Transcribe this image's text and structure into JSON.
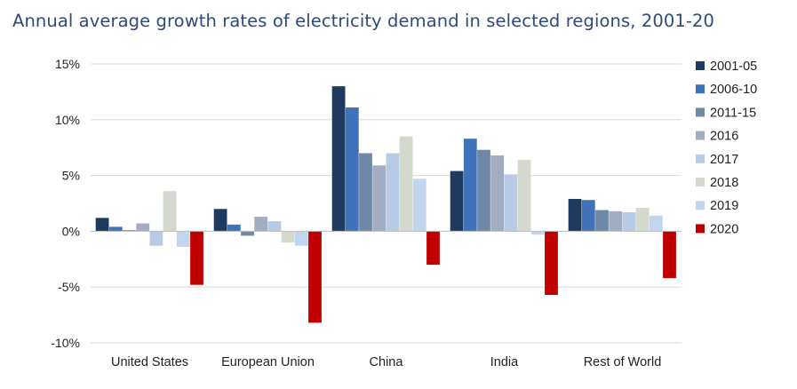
{
  "chart_data": {
    "type": "bar",
    "title": "Annual average growth rates of electricity demand in selected regions, 2001-20",
    "xlabel": "",
    "ylabel": "",
    "ylim": [
      -10,
      15
    ],
    "yticks": [
      "15%",
      "10%",
      "5%",
      "0%",
      "-5%",
      "-10%"
    ],
    "ytick_values": [
      15,
      10,
      5,
      0,
      -5,
      -10
    ],
    "grid": true,
    "legend_position": "right",
    "categories": [
      "United States",
      "European Union",
      "China",
      "India",
      "Rest of World"
    ],
    "series": [
      {
        "name": "2001-05",
        "color": "#1f3a5f",
        "values": [
          1.2,
          2.0,
          13.0,
          5.4,
          2.9
        ]
      },
      {
        "name": "2006-10",
        "color": "#3f72b8",
        "values": [
          0.4,
          0.6,
          11.1,
          8.3,
          2.8
        ]
      },
      {
        "name": "2011-15",
        "color": "#7088a8",
        "values": [
          0.1,
          -0.4,
          7.0,
          7.3,
          1.9
        ]
      },
      {
        "name": "2016",
        "color": "#a3adc2",
        "values": [
          0.7,
          1.3,
          5.9,
          6.8,
          1.8
        ]
      },
      {
        "name": "2017",
        "color": "#b8cbe6",
        "values": [
          -1.3,
          0.9,
          7.0,
          5.1,
          1.7
        ]
      },
      {
        "name": "2018",
        "color": "#d4d9cf",
        "values": [
          3.6,
          -1.0,
          8.5,
          6.4,
          2.1
        ]
      },
      {
        "name": "2019",
        "color": "#c2d5ee",
        "values": [
          -1.4,
          -1.3,
          4.7,
          -0.3,
          1.4
        ]
      },
      {
        "name": "2020",
        "color": "#c00000",
        "values": [
          -4.8,
          -8.2,
          -3.0,
          -5.7,
          -4.2
        ]
      }
    ]
  }
}
